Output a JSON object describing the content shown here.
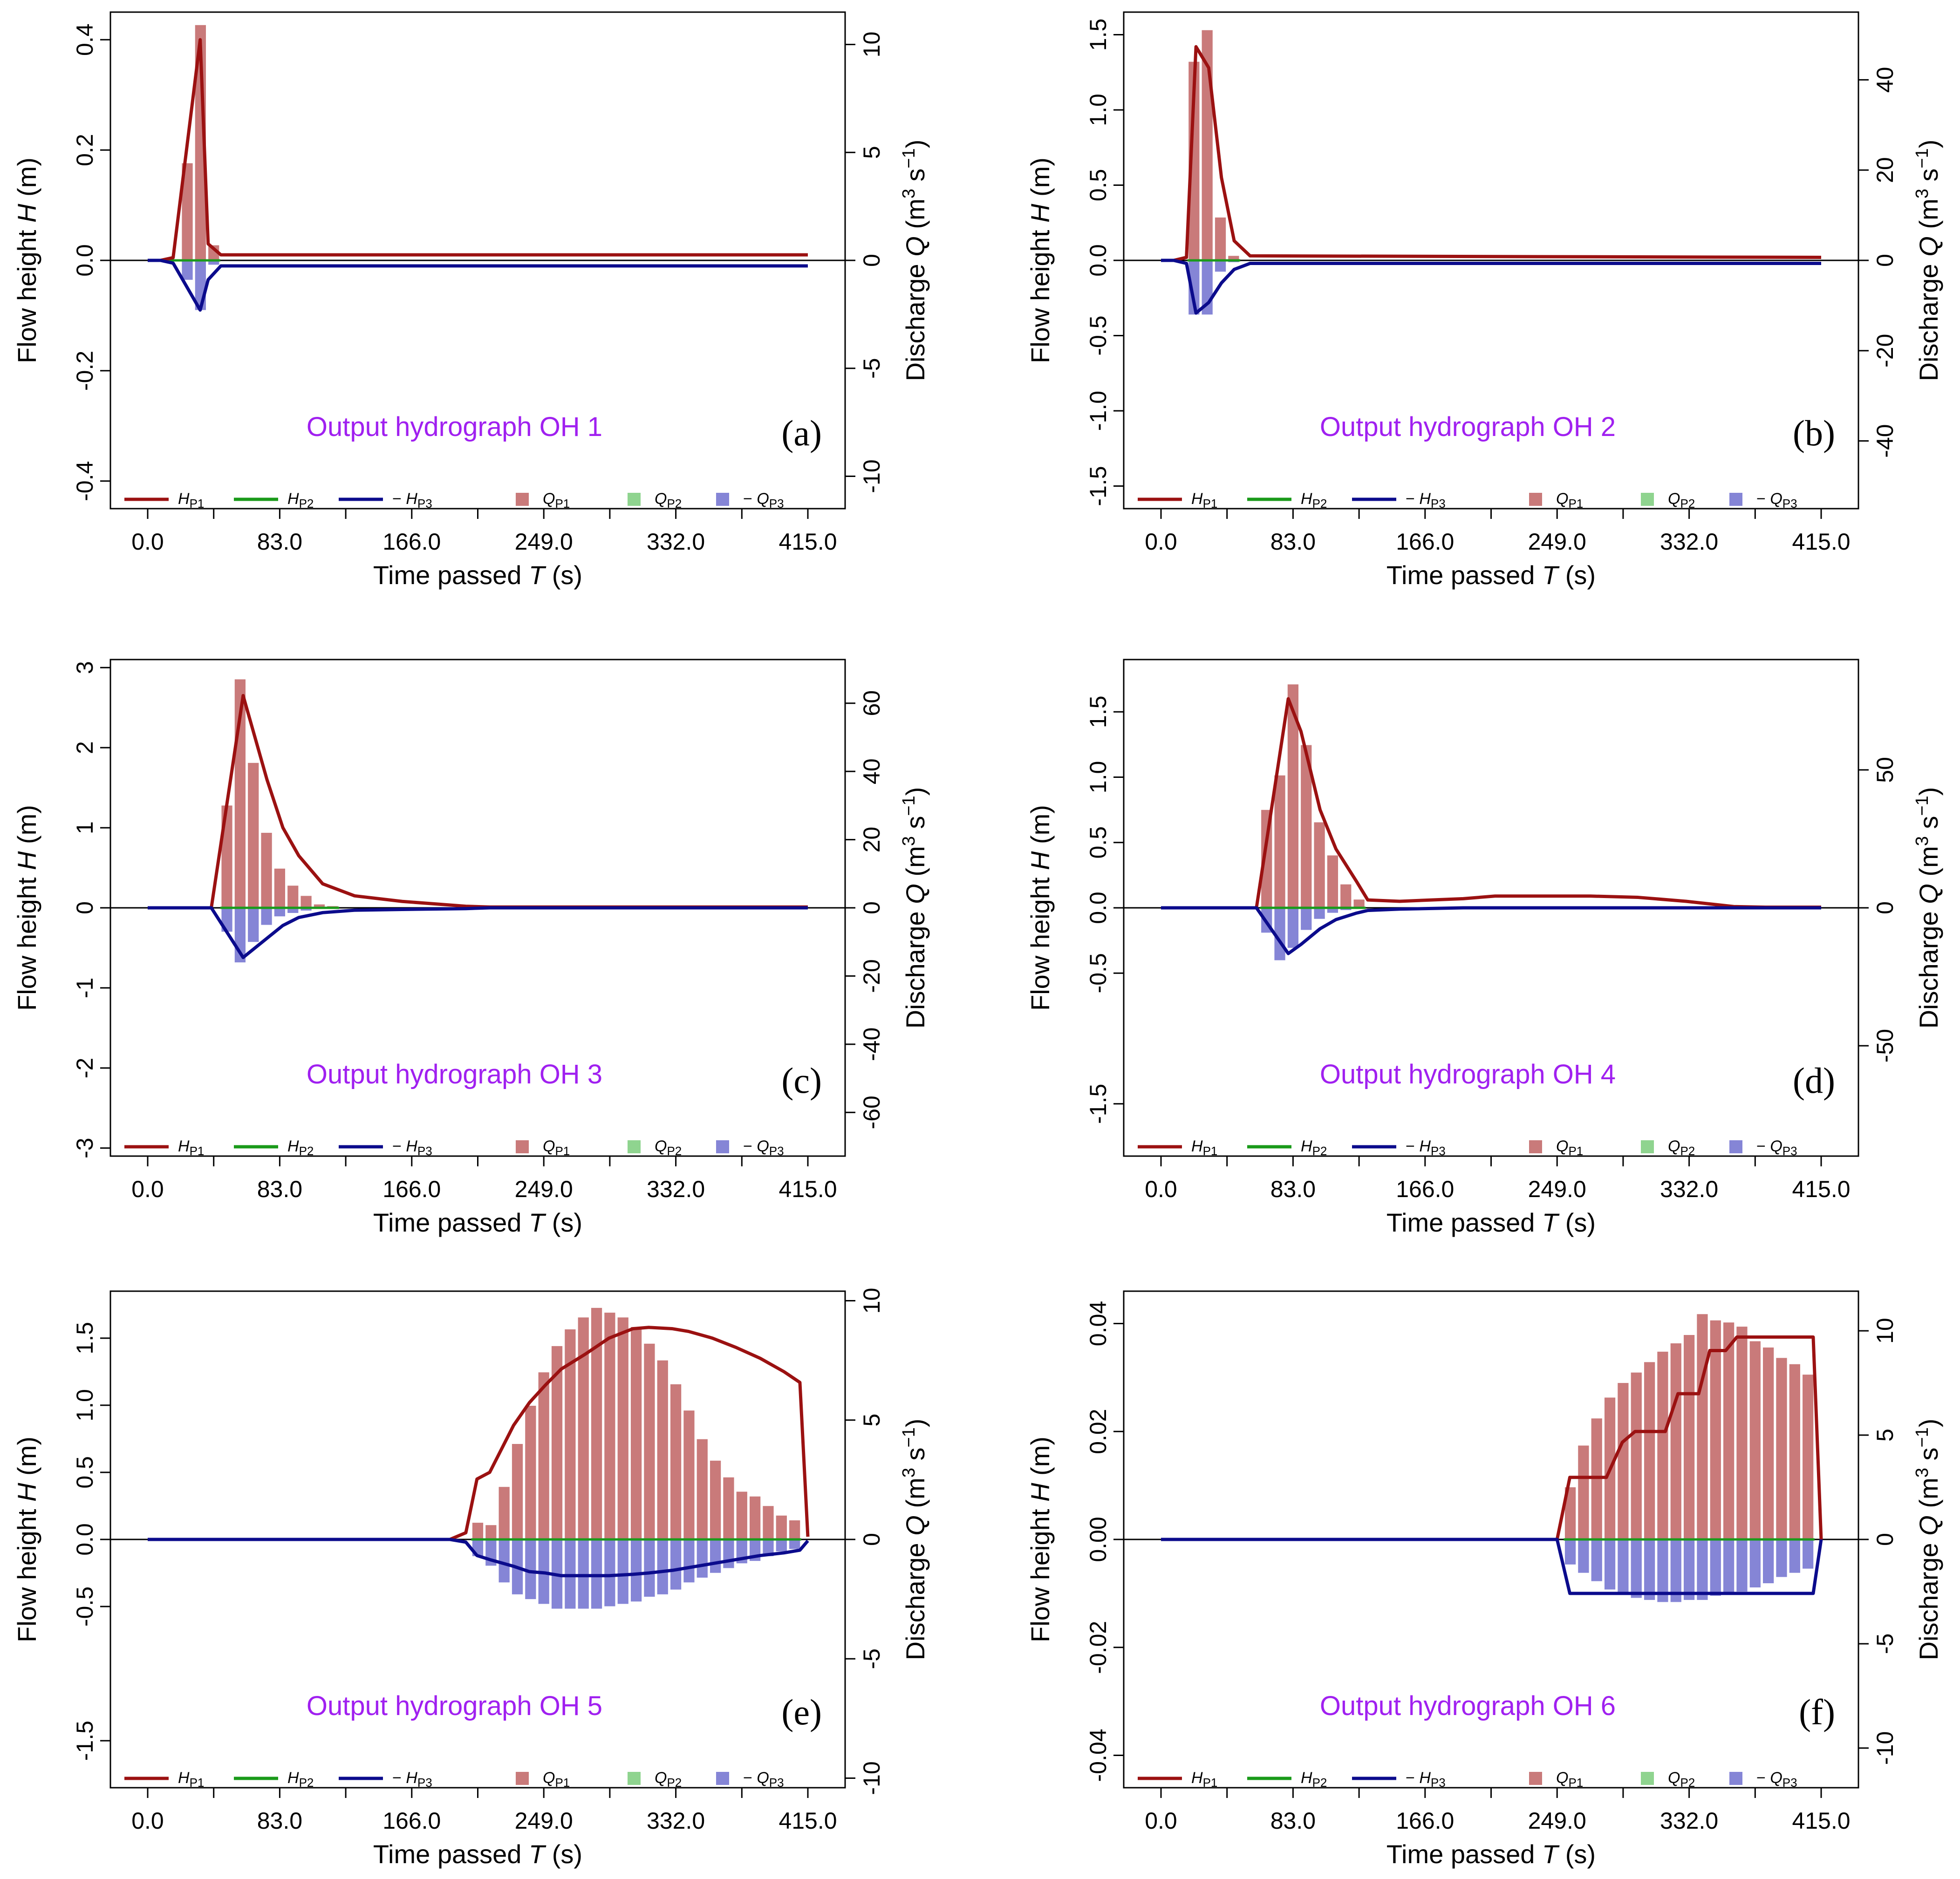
{
  "colors": {
    "HP1": "#9b1111",
    "HP2": "#1a9a1a",
    "HP3": "#0b0b8c",
    "QP1": "#c97a7a",
    "QP2": "#8fd48f",
    "QP3": "#8585d6",
    "title": "#a020f0"
  },
  "legend": {
    "HP1": "H_P1",
    "HP2": "H_P2",
    "HP3": "−H_P3",
    "QP1": "Q_P1",
    "QP2": "Q_P2",
    "QP3": "−Q_P3"
  },
  "chart_data": [
    {
      "type": "bar+line",
      "panel": "(a)",
      "title": "Output  hydrograph  OH  1",
      "xlabel": "Time passed T (s)",
      "ylabel_left": "Flow height H (m)",
      "ylabel_right": "Discharge Q (m3 s−1)",
      "xlim": [
        0,
        415
      ],
      "xticks": [
        "0.0",
        "83.0",
        "166.0",
        "249.0",
        "332.0",
        "415.0"
      ],
      "ylim_left": [
        -0.45,
        0.45
      ],
      "yticks_left": [
        "-0.4",
        "-0.2",
        "0.0",
        "0.2",
        "0.4"
      ],
      "ylim_right": [
        -11.5,
        11.5
      ],
      "yticks_right": [
        "-10",
        "-5",
        "0",
        "5",
        "10"
      ],
      "bar_width": 8.3,
      "bar_x": [
        16.6,
        24.9,
        33.2,
        41.5
      ],
      "QP1": [
        0.0,
        4.5,
        10.9,
        0.7
      ],
      "QP3": [
        0.0,
        -0.9,
        -2.3,
        -0.2
      ],
      "line_x": [
        0,
        8,
        16,
        33,
        38,
        46,
        415
      ],
      "HP1": [
        0,
        0,
        0.005,
        0.4,
        0.03,
        0.01,
        0.01
      ],
      "HP3": [
        0,
        0,
        -0.005,
        -0.09,
        -0.035,
        -0.01,
        -0.01
      ]
    },
    {
      "type": "bar+line",
      "panel": "(b)",
      "title": "Output  hydrograph  OH  2",
      "xlabel": "Time passed T (s)",
      "ylabel_left": "Flow height H (m)",
      "ylabel_right": "Discharge Q (m3 s−1)",
      "xlim": [
        0,
        415
      ],
      "xticks": [
        "0.0",
        "83.0",
        "166.0",
        "249.0",
        "332.0",
        "415.0"
      ],
      "ylim_left": [
        -1.65,
        1.65
      ],
      "yticks_left": [
        "-1.5",
        "-1.0",
        "-0.5",
        "0.0",
        "0.5",
        "1.0",
        "1.5"
      ],
      "ylim_right": [
        -55,
        55
      ],
      "yticks_right": [
        "-40",
        "-20",
        "0",
        "20",
        "40"
      ],
      "bar_width": 8.3,
      "bar_x": [
        20.75,
        29.05,
        37.35,
        45.65
      ],
      "QP1": [
        44.0,
        51.0,
        9.5,
        1.0
      ],
      "QP3": [
        -12.0,
        -12.0,
        -2.5,
        -0.4
      ],
      "line_x": [
        0,
        8,
        16,
        22,
        30,
        38,
        46,
        56,
        415
      ],
      "HP1": [
        0,
        0,
        0.02,
        1.42,
        1.28,
        0.55,
        0.13,
        0.03,
        0.02
      ],
      "HP3": [
        0,
        0,
        -0.02,
        -0.35,
        -0.28,
        -0.15,
        -0.06,
        -0.02,
        -0.02
      ]
    },
    {
      "type": "bar+line",
      "panel": "(c)",
      "title": "Output  hydrograph  OH  3",
      "xlabel": "Time passed T (s)",
      "ylabel_left": "Flow height H (m)",
      "ylabel_right": "Discharge Q (m3 s−1)",
      "xlim": [
        0,
        415
      ],
      "xticks": [
        "0.0",
        "83.0",
        "166.0",
        "249.0",
        "332.0",
        "415.0"
      ],
      "ylim_left": [
        -3.1,
        3.1
      ],
      "yticks_left": [
        "-3",
        "-2",
        "-1",
        "0",
        "1",
        "2",
        "3"
      ],
      "ylim_right": [
        -72.8,
        72.8
      ],
      "yticks_right": [
        "-60",
        "-40",
        "-20",
        "0",
        "20",
        "40",
        "60"
      ],
      "bar_width": 8.3,
      "bar_x": [
        49.8,
        58.1,
        66.4,
        74.7,
        83.0,
        91.3,
        99.6,
        107.9,
        116.2
      ],
      "QP1": [
        30.0,
        67.0,
        42.5,
        22.0,
        11.5,
        6.5,
        3.5,
        1.0,
        0.5
      ],
      "QP3": [
        -7.0,
        -16.0,
        -10.0,
        -5.0,
        -2.5,
        -1.5,
        -0.8,
        -0.3,
        -0.1
      ],
      "line_x": [
        0,
        40,
        60,
        75,
        85,
        95,
        110,
        130,
        160,
        200,
        215,
        415
      ],
      "HP1": [
        0,
        0,
        2.65,
        1.6,
        1.0,
        0.65,
        0.3,
        0.15,
        0.08,
        0.02,
        0.01,
        0.01
      ],
      "HP3": [
        0,
        0,
        -0.62,
        -0.38,
        -0.22,
        -0.12,
        -0.06,
        -0.03,
        -0.02,
        -0.01,
        0,
        0
      ]
    },
    {
      "type": "bar+line",
      "panel": "(d)",
      "title": "Output  hydrograph  OH  4",
      "xlabel": "Time passed T (s)",
      "ylabel_left": "Flow height H (m)",
      "ylabel_right": "Discharge Q (m3 s−1)",
      "xlim": [
        0,
        415
      ],
      "xticks": [
        "0.0",
        "83.0",
        "166.0",
        "249.0",
        "332.0",
        "415.0"
      ],
      "ylim_left": [
        -1.9,
        1.9
      ],
      "yticks_left": [
        "-1.5",
        "-0.5",
        "0.0",
        "0.5",
        "1.0",
        "1.5"
      ],
      "ylim_right": [
        -90,
        90
      ],
      "yticks_right": [
        "-50",
        "0",
        "50"
      ],
      "bar_width": 8.3,
      "bar_x": [
        66.4,
        74.7,
        83.0,
        91.3,
        99.6,
        107.9,
        116.2,
        124.5
      ],
      "QP1": [
        35.5,
        48.0,
        81.0,
        59.0,
        31.0,
        19.0,
        8.5,
        3.0
      ],
      "QP3": [
        -9.0,
        -19.0,
        -14.5,
        -8.0,
        -4.0,
        -1.8,
        -0.8,
        -0.3
      ],
      "line_x": [
        0,
        60,
        80,
        88,
        100,
        110,
        123,
        130,
        150,
        170,
        190,
        210,
        240,
        270,
        300,
        330,
        360,
        380,
        415
      ],
      "HP1": [
        0,
        0,
        1.6,
        1.35,
        0.75,
        0.45,
        0.2,
        0.06,
        0.05,
        0.06,
        0.07,
        0.09,
        0.09,
        0.09,
        0.08,
        0.05,
        0.01,
        0.005,
        0.005
      ],
      "HP3": [
        0,
        0,
        -0.35,
        -0.28,
        -0.16,
        -0.09,
        -0.04,
        -0.02,
        -0.01,
        -0.005,
        0,
        0,
        0,
        0,
        0,
        0,
        0,
        0,
        0
      ]
    },
    {
      "type": "bar+line",
      "panel": "(e)",
      "title": "Output  hydrograph  OH  5",
      "xlabel": "Time passed T (s)",
      "ylabel_left": "Flow height H (m)",
      "ylabel_right": "Discharge Q (m3 s−1)",
      "xlim": [
        0,
        415
      ],
      "xticks": [
        "0.0",
        "83.0",
        "166.0",
        "249.0",
        "332.0",
        "415.0"
      ],
      "ylim_left": [
        -1.85,
        1.85
      ],
      "yticks_left": [
        "-1.5",
        "-0.5",
        "0.0",
        "0.5",
        "1.0",
        "1.5"
      ],
      "ylim_right": [
        -10.4,
        10.4
      ],
      "yticks_right": [
        "-10",
        "-5",
        "0",
        "5",
        "10"
      ],
      "bar_width": 8.3,
      "bar_x": [
        207.5,
        215.8,
        224.1,
        232.4,
        240.7,
        249.0,
        257.3,
        265.6,
        273.9,
        282.2,
        290.5,
        298.8,
        307.1,
        315.4,
        323.7,
        332.0,
        340.3,
        348.6,
        356.9,
        365.2,
        373.5,
        381.8,
        390.1,
        398.4,
        406.7
      ],
      "QP1": [
        0.7,
        0.6,
        2.2,
        4.0,
        5.6,
        7.0,
        8.1,
        8.8,
        9.3,
        9.7,
        9.5,
        9.3,
        8.9,
        8.2,
        7.5,
        6.5,
        5.4,
        4.2,
        3.3,
        2.6,
        2.0,
        1.8,
        1.4,
        1.0,
        0.8
      ],
      "QP3": [
        -0.7,
        -1.1,
        -1.8,
        -2.3,
        -2.5,
        -2.7,
        -2.9,
        -2.9,
        -2.9,
        -2.9,
        -2.8,
        -2.7,
        -2.6,
        -2.4,
        -2.3,
        -2.1,
        -1.8,
        -1.6,
        -1.4,
        -1.2,
        -1.0,
        -0.9,
        -0.7,
        -0.5,
        -0.4
      ],
      "line_x": [
        0,
        190,
        200,
        207,
        215,
        230,
        240,
        250,
        260,
        275,
        290,
        305,
        315,
        330,
        340,
        355,
        370,
        385,
        400,
        410,
        415
      ],
      "HP1": [
        0,
        0,
        0.05,
        0.45,
        0.5,
        0.85,
        1.02,
        1.15,
        1.27,
        1.38,
        1.5,
        1.57,
        1.58,
        1.57,
        1.55,
        1.5,
        1.43,
        1.35,
        1.25,
        1.17,
        0.02
      ],
      "HP3": [
        0,
        0,
        -0.02,
        -0.12,
        -0.15,
        -0.2,
        -0.24,
        -0.25,
        -0.27,
        -0.27,
        -0.27,
        -0.26,
        -0.25,
        -0.23,
        -0.21,
        -0.18,
        -0.15,
        -0.12,
        -0.1,
        -0.08,
        -0.01
      ]
    },
    {
      "type": "bar+line",
      "panel": "(f)",
      "title": "Output  hydrograph  OH  6",
      "xlabel": "Time passed T (s)",
      "ylabel_left": "Flow height H (m)",
      "ylabel_right": "Discharge Q (m3 s−1)",
      "xlim": [
        0,
        415
      ],
      "xticks": [
        "0.0",
        "83.0",
        "166.0",
        "249.0",
        "332.0",
        "415.0"
      ],
      "ylim_left": [
        -0.046,
        0.046
      ],
      "yticks_left": [
        "-0.04",
        "-0.02",
        "0.00",
        "0.02",
        "0.04"
      ],
      "ylim_right": [
        -11.9,
        11.9
      ],
      "yticks_right": [
        "-10",
        "-5",
        "0",
        "5",
        "10"
      ],
      "bar_width": 8.3,
      "bar_x": [
        257.3,
        265.6,
        273.9,
        282.2,
        290.5,
        298.8,
        307.1,
        315.4,
        323.7,
        332.0,
        340.3,
        348.6,
        356.9,
        365.2,
        373.5,
        381.8,
        390.1,
        398.4,
        406.7
      ],
      "QP1": [
        2.5,
        4.5,
        5.8,
        6.8,
        7.5,
        8.0,
        8.5,
        9.0,
        9.4,
        9.8,
        10.8,
        10.5,
        10.4,
        10.2,
        9.5,
        9.2,
        8.7,
        8.4,
        7.9
      ],
      "QP3": [
        -1.2,
        -1.6,
        -2.0,
        -2.4,
        -2.6,
        -2.8,
        -2.9,
        -3.0,
        -3.0,
        -2.9,
        -2.9,
        -2.7,
        -2.6,
        -2.5,
        -2.3,
        -2.1,
        -1.8,
        -1.6,
        -1.4
      ],
      "line_x": [
        0,
        249,
        257,
        280,
        290,
        298,
        317,
        325,
        338,
        345,
        355,
        362,
        410,
        415
      ],
      "HP1": [
        0,
        0,
        0.0115,
        0.0115,
        0.018,
        0.02,
        0.02,
        0.027,
        0.027,
        0.035,
        0.035,
        0.0375,
        0.0375,
        0
      ],
      "HP3": [
        0,
        0,
        -0.01,
        -0.01,
        -0.01,
        -0.01,
        -0.01,
        -0.01,
        -0.01,
        -0.01,
        -0.01,
        -0.01,
        -0.01,
        0
      ]
    }
  ]
}
